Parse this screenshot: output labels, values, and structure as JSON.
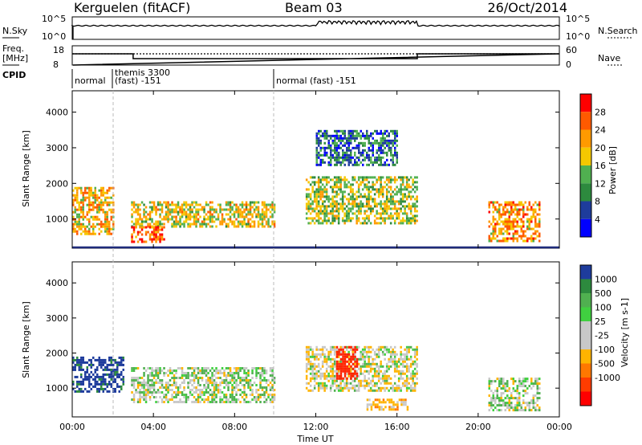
{
  "header": {
    "station": "Kerguelen (fitACF)",
    "beam": "Beam 03",
    "date": "26/Oct/2014"
  },
  "panels": {
    "nsky": {
      "label": "N.Sky",
      "ticks": [
        "10^5",
        "10^0"
      ],
      "right_label": "N.Search",
      "right_ticks": [
        "10^5",
        "10^0"
      ]
    },
    "freq": {
      "label_line1": "Freq.",
      "label_line2": "[MHz]",
      "ticks": [
        "18",
        "8"
      ],
      "right_label": "Nave",
      "right_ticks": [
        "60",
        "0"
      ]
    },
    "cpid": {
      "label": "CPID",
      "segments": [
        {
          "text": "normal",
          "start_hour": 0.0
        },
        {
          "text_line1": "themis 3300",
          "text_line2": "(fast) -151",
          "start_hour": 2.0
        },
        {
          "text": "normal (fast) -151",
          "start_hour": 10.0
        }
      ]
    }
  },
  "colorbars": {
    "power": {
      "title": "Power [dB]",
      "labels": [
        "28",
        "24",
        "20",
        "16",
        "12",
        "8",
        "4"
      ],
      "colors": [
        "#ff0000",
        "#ff5a00",
        "#ff9a00",
        "#f5c800",
        "#50b050",
        "#2d8a3e",
        "#1e3c9c",
        "#0000ff"
      ]
    },
    "velocity": {
      "title": "Velocity [m s-1]",
      "labels": [
        "1000",
        "500",
        "100",
        "25",
        "-25",
        "-100",
        "-500",
        "-1000"
      ],
      "colors": [
        "#1e3c9c",
        "#2d8a3e",
        "#50b050",
        "#40d040",
        "#c8c8c8",
        "#c8c8c8",
        "#ffb400",
        "#ff7800",
        "#ff3c00",
        "#ff0000"
      ]
    }
  },
  "chart_data": [
    {
      "type": "heatmap",
      "name": "power",
      "ylabel": "Slant Range [km]",
      "xlabel": "",
      "x_ticks": [
        "00:00",
        "04:00",
        "08:00",
        "12:00",
        "16:00",
        "20:00",
        "00:00"
      ],
      "y_ticks": [
        "1000",
        "2000",
        "3000",
        "4000"
      ],
      "xlim_hours": [
        0,
        24
      ],
      "ylim_km": [
        180,
        4600
      ],
      "regions": [
        {
          "t0": 0.0,
          "t1": 2.0,
          "r0": 600,
          "r1": 1900,
          "value": 20
        },
        {
          "t0": 2.9,
          "t1": 10.0,
          "r0": 800,
          "r1": 1500,
          "value": 18
        },
        {
          "t0": 2.9,
          "t1": 4.5,
          "r0": 350,
          "r1": 800,
          "value": 26
        },
        {
          "t0": 11.5,
          "t1": 17.0,
          "r0": 900,
          "r1": 2200,
          "value": 16
        },
        {
          "t0": 12.0,
          "t1": 16.0,
          "r0": 2500,
          "r1": 3500,
          "value": 8
        },
        {
          "t0": 20.5,
          "t1": 23.0,
          "r0": 400,
          "r1": 1500,
          "value": 22
        }
      ]
    },
    {
      "type": "heatmap",
      "name": "velocity",
      "ylabel": "Slant Range [km]",
      "xlabel": "Time UT",
      "x_ticks": [
        "00:00",
        "04:00",
        "08:00",
        "12:00",
        "16:00",
        "20:00",
        "00:00"
      ],
      "y_ticks": [
        "1000",
        "2000",
        "3000",
        "4000"
      ],
      "xlim_hours": [
        0,
        24
      ],
      "ylim_km": [
        180,
        4600
      ],
      "regions": [
        {
          "t0": 0.0,
          "t1": 2.5,
          "r0": 900,
          "r1": 1900,
          "value": 800
        },
        {
          "t0": 2.9,
          "t1": 10.0,
          "r0": 600,
          "r1": 1600,
          "value": 0
        },
        {
          "t0": 11.5,
          "t1": 17.0,
          "r0": 900,
          "r1": 2200,
          "value": -50
        },
        {
          "t0": 13.0,
          "t1": 14.0,
          "r0": 1300,
          "r1": 2200,
          "value": -900
        },
        {
          "t0": 14.5,
          "t1": 16.5,
          "r0": 400,
          "r1": 700,
          "value": -200
        },
        {
          "t0": 20.5,
          "t1": 23.0,
          "r0": 400,
          "r1": 1300,
          "value": 0
        }
      ]
    }
  ]
}
